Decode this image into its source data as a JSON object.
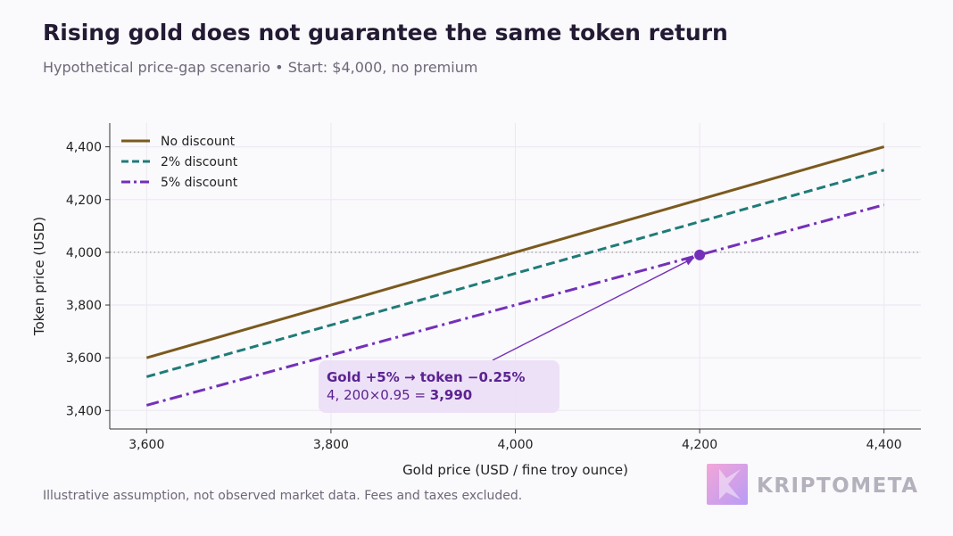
{
  "header": {
    "title": "Rising gold does not guarantee the same token return",
    "subtitle": "Hypothetical price-gap scenario • Start: $4,000, no premium"
  },
  "footer": {
    "note": "Illustrative assumption, not observed market data. Fees and taxes excluded."
  },
  "brand": {
    "name": "KRIPTOMETA",
    "logo_gradient": [
      "#f3a6d8",
      "#b79cf5"
    ]
  },
  "chart_data": {
    "type": "line",
    "xlabel": "Gold price (USD / fine troy ounce)",
    "ylabel": "Token price (USD)",
    "xlim": [
      3560,
      4440
    ],
    "ylim": [
      3330,
      4490
    ],
    "xticks": [
      3600,
      3800,
      4000,
      4200,
      4400
    ],
    "xtick_labels": [
      "3,600",
      "3,800",
      "4,000",
      "4,200",
      "4,400"
    ],
    "yticks": [
      3400,
      3600,
      3800,
      4000,
      4200,
      4400
    ],
    "ytick_labels": [
      "3,400",
      "3,600",
      "3,800",
      "4,000",
      "4,200",
      "4,400"
    ],
    "grid": true,
    "legend_position": "top-left",
    "reference_line": {
      "y": 4000,
      "style": "dotted",
      "color": "#999999"
    },
    "x": [
      3600,
      4400
    ],
    "series": [
      {
        "name": "No discount",
        "values": [
          3600,
          4400
        ],
        "color": "#7b5a1e",
        "dash": "solid"
      },
      {
        "name": "2% discount",
        "values": [
          3528,
          4312
        ],
        "color": "#1f7b78",
        "dash": "dashed"
      },
      {
        "name": "5% discount",
        "values": [
          3420,
          4180
        ],
        "color": "#7430b8",
        "dash": "dashdot"
      }
    ],
    "highlight_point": {
      "x": 4200,
      "y": 3990,
      "color": "#7430b8"
    },
    "annotation": {
      "line1": "Gold +5% → token −0.25%",
      "line2_prefix": "4, 200×0.95 = ",
      "line2_value": "3,990",
      "text_color": "#5b2391",
      "box_color": "#ecdff7"
    }
  }
}
